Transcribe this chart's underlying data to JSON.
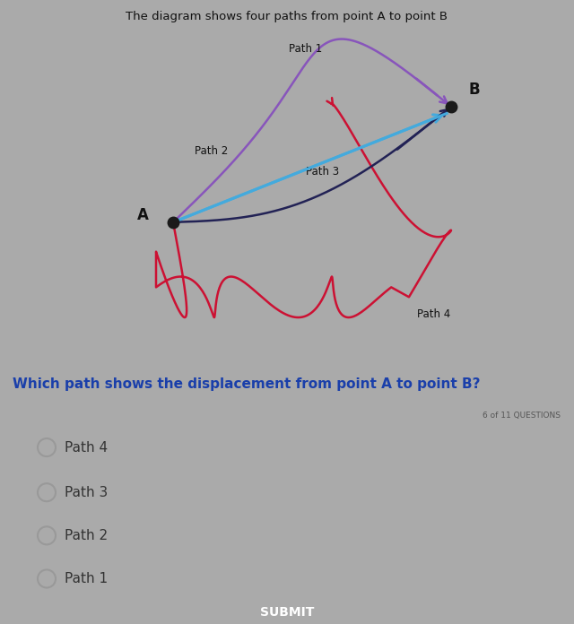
{
  "bg_outer": "#aaaaaa",
  "bg_diagram": "#f5f5f5",
  "bg_question": "#c8d4e8",
  "bg_answers": "#f0f0f0",
  "title_text": "The diagram shows four paths from point A to point B",
  "title_color": "#111111",
  "title_fontsize": 9.5,
  "question_text": "Which path shows the displacement from point A to point B?",
  "question_color": "#1a3faa",
  "question_fontsize": 11,
  "counter_text": "6 of 11 QUESTIONS",
  "counter_color": "#555555",
  "counter_fontsize": 6.5,
  "options": [
    "Path 4",
    "Path 3",
    "Path 2",
    "Path 1"
  ],
  "options_fontsize": 11,
  "submit_text": "SUBMIT",
  "submit_bg": "#5599cc",
  "submit_color": "#ffffff",
  "path1_color": "#8855bb",
  "path2_color": "#44aadd",
  "path3_color": "#222255",
  "path4_color": "#cc1133"
}
